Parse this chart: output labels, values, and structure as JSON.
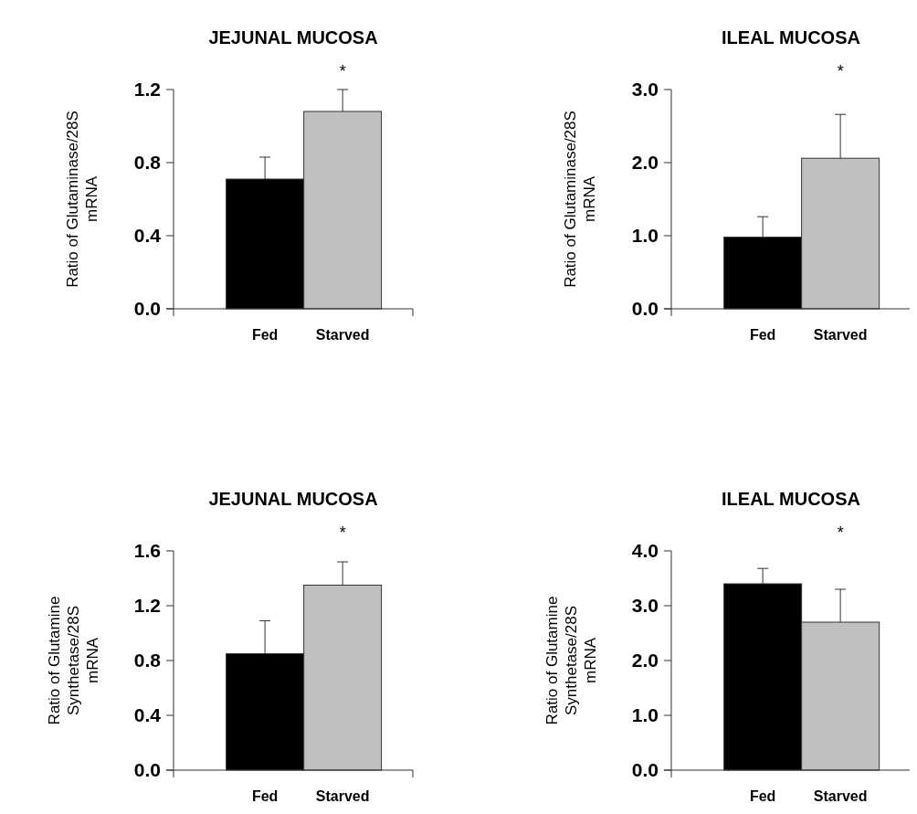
{
  "chart_data": [
    {
      "type": "bar",
      "title": "JEJUNAL MUCOSA",
      "ylabel": "Ratio of Glutaminase/28S\nmRNA",
      "categories": [
        "Fed",
        "Starved"
      ],
      "values": [
        0.71,
        1.08
      ],
      "colors": [
        "#000000",
        "#c0c0c0"
      ],
      "errors": [
        0.12,
        0.12
      ],
      "ylim": [
        0,
        1.2
      ],
      "yticks": [
        {
          "value": 0,
          "label": "0.0"
        },
        {
          "value": 0.4,
          "label": "0.4"
        },
        {
          "value": 0.8,
          "label": "0.8"
        },
        {
          "value": 1.2,
          "label": "1.2"
        }
      ],
      "annotations": [
        "*"
      ],
      "grid": false
    },
    {
      "type": "bar",
      "title": "ILEAL MUCOSA",
      "ylabel": "Ratio of Glutaminase/28S\nmRNA",
      "categories": [
        "Fed",
        "Starved"
      ],
      "values": [
        0.98,
        2.06
      ],
      "colors": [
        "#000000",
        "#c0c0c0"
      ],
      "errors": [
        0.28,
        0.6
      ],
      "ylim": [
        0,
        3
      ],
      "yticks": [
        {
          "value": 0,
          "label": "0.0"
        },
        {
          "value": 1,
          "label": "1.0"
        },
        {
          "value": 2,
          "label": "2.0"
        },
        {
          "value": 3,
          "label": "3.0"
        }
      ],
      "annotations": [
        "*"
      ],
      "grid": false
    },
    {
      "type": "bar",
      "title": "JEJUNAL MUCOSA",
      "ylabel": "Ratio of Glutamine\nSynthetase/28S\nmRNA",
      "categories": [
        "Fed",
        "Starved"
      ],
      "values": [
        0.85,
        1.35
      ],
      "colors": [
        "#000000",
        "#c0c0c0"
      ],
      "errors": [
        0.24,
        0.17
      ],
      "ylim": [
        0,
        1.6
      ],
      "yticks": [
        {
          "value": 0,
          "label": "0.0"
        },
        {
          "value": 0.4,
          "label": "0.4"
        },
        {
          "value": 0.8,
          "label": "0.8"
        },
        {
          "value": 1.2,
          "label": "1.2"
        },
        {
          "value": 1.6,
          "label": "1.6"
        }
      ],
      "annotations": [
        "*"
      ],
      "grid": false
    },
    {
      "type": "bar",
      "title": "ILEAL MUCOSA",
      "ylabel": "Ratio of Glutamine\nSynthetase/28S\nmRNA",
      "categories": [
        "Fed",
        "Starved"
      ],
      "values": [
        3.4,
        2.7
      ],
      "colors": [
        "#000000",
        "#c0c0c0"
      ],
      "errors": [
        0.28,
        0.6
      ],
      "ylim": [
        0,
        4
      ],
      "yticks": [
        {
          "value": 0,
          "label": "0.0"
        },
        {
          "value": 1,
          "label": "1.0"
        },
        {
          "value": 2,
          "label": "2.0"
        },
        {
          "value": 3,
          "label": "3.0"
        },
        {
          "value": 4,
          "label": "4.0"
        }
      ],
      "annotations": [
        "*"
      ],
      "grid": false
    }
  ]
}
